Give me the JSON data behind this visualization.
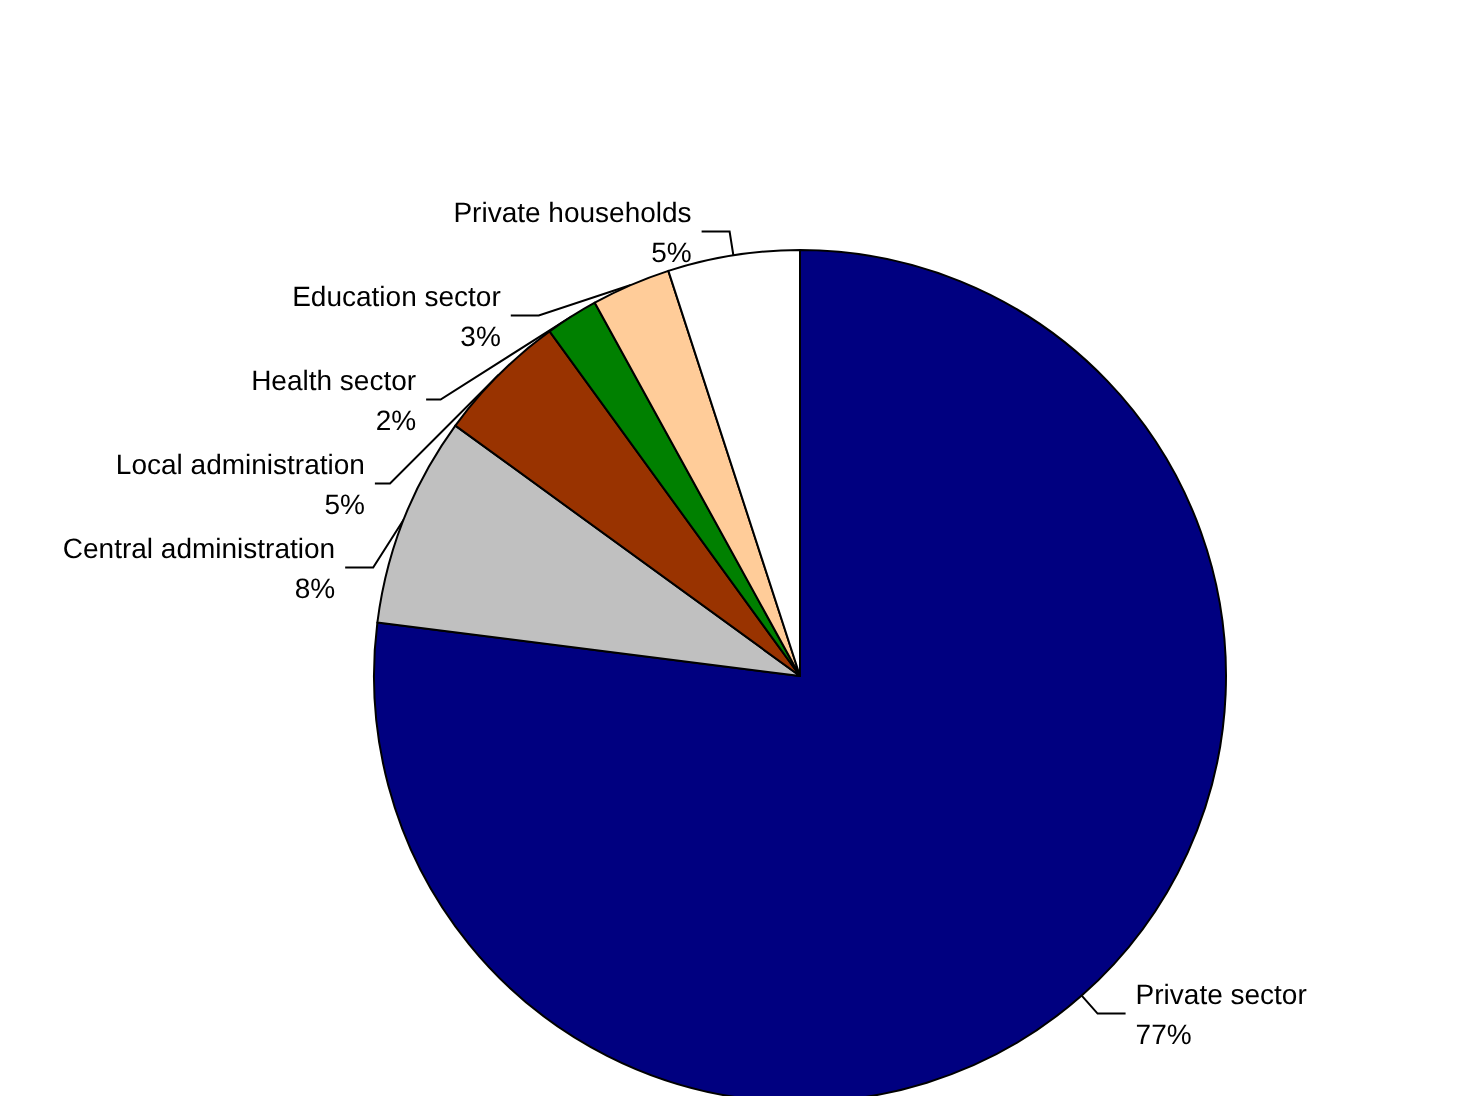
{
  "chart_data": {
    "type": "pie",
    "categories": [
      "Private sector",
      "Central administration",
      "Local administration",
      "Health sector",
      "Education sector",
      "Private households"
    ],
    "values": [
      77,
      8,
      5,
      2,
      3,
      5
    ],
    "value_labels": [
      "77%",
      "8%",
      "5%",
      "2%",
      "3%",
      "5%"
    ],
    "colors": [
      "#000080",
      "#c0c0c0",
      "#993300",
      "#008000",
      "#ffcc99",
      "#ffffff"
    ],
    "legend": false
  }
}
